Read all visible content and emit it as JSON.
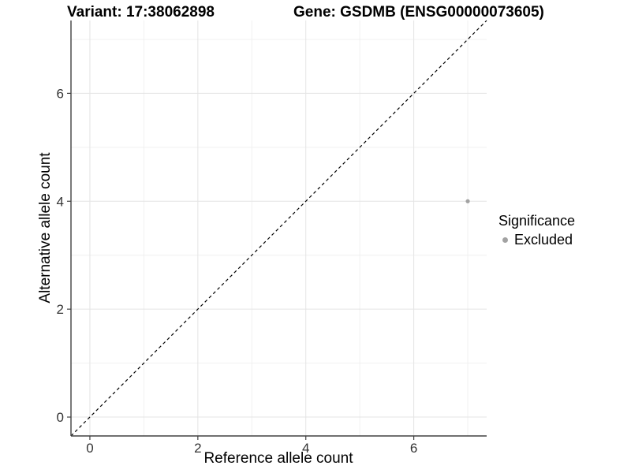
{
  "chart_data": {
    "type": "scatter",
    "title_left": "Variant: 17:38062898",
    "title_right": "Gene: GSDMB (ENSG00000073605)",
    "xlabel": "Reference allele count",
    "ylabel": "Alternative allele count",
    "xlim": [
      -0.35,
      7.35
    ],
    "ylim": [
      -0.35,
      7.35
    ],
    "x_ticks": [
      0,
      2,
      4,
      6
    ],
    "y_ticks": [
      0,
      2,
      4,
      6
    ],
    "x_minor": [
      1,
      3,
      5,
      7
    ],
    "y_minor": [
      1,
      3,
      5,
      7
    ],
    "grid": "on",
    "identity_line": {
      "style": "dashed",
      "color": "#000000"
    },
    "series": [
      {
        "name": "Excluded",
        "color": "#a2a2a2",
        "points": [
          {
            "x": 7,
            "y": 4
          }
        ]
      }
    ],
    "legend": {
      "title": "Significance",
      "position": "right",
      "entries": [
        {
          "label": "Excluded",
          "color": "#a2a2a2"
        }
      ]
    },
    "colors": {
      "grid_major": "#e4e4e4",
      "grid_minor": "#f0f0f0",
      "axis": "#404040",
      "tick_label": "#333333",
      "background": "#ffffff"
    }
  }
}
